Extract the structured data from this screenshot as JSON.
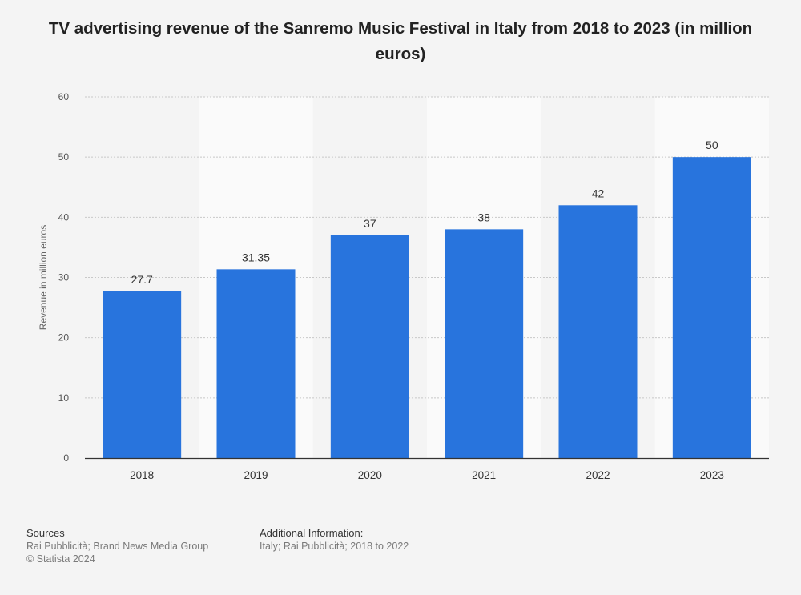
{
  "title": "TV advertising revenue of the Sanremo Music Festival in Italy from 2018 to 2023 (in million euros)",
  "chart_data": {
    "type": "bar",
    "title": "TV advertising revenue of the Sanremo Music Festival in Italy from 2018 to 2023 (in million euros)",
    "categories": [
      "2018",
      "2019",
      "2020",
      "2021",
      "2022",
      "2023"
    ],
    "values": [
      27.7,
      31.35,
      37,
      38,
      42,
      50
    ],
    "value_labels": [
      "27.7",
      "31.35",
      "37",
      "38",
      "42",
      "50"
    ],
    "xlabel": "",
    "ylabel": "Revenue in million euros",
    "ylim": [
      0,
      60
    ],
    "yticks": [
      0,
      10,
      20,
      30,
      40,
      50,
      60
    ],
    "grid": true,
    "legend": "none",
    "bar_color": "#2874dd"
  },
  "footer": {
    "sources_heading": "Sources",
    "sources_lines": [
      "Rai Pubblicità; Brand News Media Group",
      "© Statista 2024"
    ],
    "additional_heading": "Additional Information:",
    "additional_lines": [
      "Italy; Rai Pubblicità; 2018 to 2022"
    ]
  }
}
